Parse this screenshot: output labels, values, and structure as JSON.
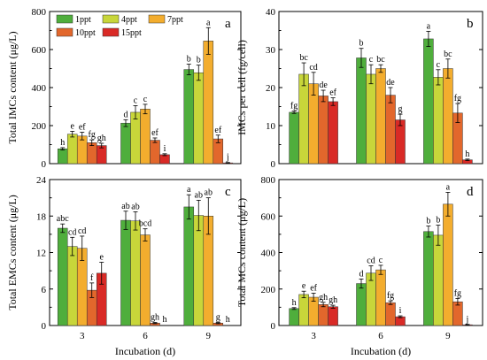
{
  "legend": {
    "placement": "top-center",
    "entries": [
      "1ppt",
      "4ppt",
      "7ppt",
      "10ppt",
      "15ppt"
    ]
  },
  "colors": {
    "1ppt": "#4fae3c",
    "4ppt": "#c8d63a",
    "7ppt": "#f3ad2e",
    "10ppt": "#e2672c",
    "15ppt": "#d92a26"
  },
  "chart_data": [
    {
      "panel": "a",
      "type": "bar",
      "categories": [
        "3",
        "6",
        "9"
      ],
      "ylabel": "Total IMCs content (μg/L)",
      "xlabel": "",
      "ylim": [
        0,
        800
      ],
      "yticks": [
        0,
        200,
        400,
        600,
        800
      ],
      "series": [
        {
          "name": "1ppt",
          "values": [
            78,
            213,
            495
          ],
          "errors": [
            6,
            18,
            28
          ],
          "labels": [
            "h",
            "d",
            "b"
          ]
        },
        {
          "name": "4ppt",
          "values": [
            155,
            270,
            478
          ],
          "errors": [
            15,
            35,
            40
          ],
          "labels": [
            "e",
            "c",
            "b"
          ]
        },
        {
          "name": "7ppt",
          "values": [
            145,
            287,
            645
          ],
          "errors": [
            20,
            25,
            70
          ],
          "labels": [
            "ef",
            "c",
            "a"
          ]
        },
        {
          "name": "10ppt",
          "values": [
            110,
            123,
            130
          ],
          "errors": [
            15,
            12,
            20
          ],
          "labels": [
            "fg",
            "ef",
            "ef"
          ]
        },
        {
          "name": "15ppt",
          "values": [
            95,
            47,
            4
          ],
          "errors": [
            12,
            5,
            2
          ],
          "labels": [
            "gh",
            "i",
            "j"
          ]
        }
      ]
    },
    {
      "panel": "b",
      "type": "bar",
      "categories": [
        "3",
        "6",
        "9"
      ],
      "ylabel": "IMCs per cell (fg/cell)",
      "xlabel": "",
      "ylim": [
        0,
        40
      ],
      "yticks": [
        0,
        10,
        20,
        30,
        40
      ],
      "series": [
        {
          "name": "1ppt",
          "values": [
            13.5,
            27.8,
            32.8
          ],
          "errors": [
            0.3,
            2.5,
            2
          ],
          "labels": [
            "fg",
            "b",
            "a"
          ]
        },
        {
          "name": "4ppt",
          "values": [
            23.5,
            23.5,
            22.7
          ],
          "errors": [
            3,
            2.5,
            2
          ],
          "labels": [
            "bc",
            "c",
            "c"
          ]
        },
        {
          "name": "7ppt",
          "values": [
            21,
            25,
            25
          ],
          "errors": [
            3,
            1,
            2.5
          ],
          "labels": [
            "cd",
            "bc",
            "bc"
          ]
        },
        {
          "name": "10ppt",
          "values": [
            17.8,
            18,
            13.3
          ],
          "errors": [
            1.5,
            2,
            2.5
          ],
          "labels": [
            "de",
            "de",
            "fg"
          ]
        },
        {
          "name": "15ppt",
          "values": [
            16.3,
            11.5,
            1
          ],
          "errors": [
            1,
            1.5,
            0.2
          ],
          "labels": [
            "ef",
            "g",
            "h"
          ]
        }
      ]
    },
    {
      "panel": "c",
      "type": "bar",
      "categories": [
        "3",
        "6",
        "9"
      ],
      "ylabel": "Total EMCs content (μg/L)",
      "xlabel": "Incubation (d)",
      "ylim": [
        0,
        24
      ],
      "yticks": [
        0,
        6,
        12,
        18,
        24
      ],
      "series": [
        {
          "name": "1ppt",
          "values": [
            16,
            17.3,
            19.5
          ],
          "errors": [
            0.7,
            1.5,
            2
          ],
          "labels": [
            "abc",
            "ab",
            "a"
          ]
        },
        {
          "name": "4ppt",
          "values": [
            13,
            17.2,
            18.1
          ],
          "errors": [
            1.5,
            1.5,
            2.5
          ],
          "labels": [
            "cd",
            "ab",
            "ab"
          ]
        },
        {
          "name": "7ppt",
          "values": [
            12.7,
            14.9,
            18
          ],
          "errors": [
            2,
            1,
            3
          ],
          "labels": [
            "cd",
            "bcd",
            "ab"
          ]
        },
        {
          "name": "10ppt",
          "values": [
            5.8,
            0.4,
            0.4
          ],
          "errors": [
            1.2,
            0.1,
            0.1
          ],
          "labels": [
            "f",
            "gh",
            "g"
          ]
        },
        {
          "name": "15ppt",
          "values": [
            8.6,
            0,
            0
          ],
          "errors": [
            1.8,
            0,
            0
          ],
          "labels": [
            "e",
            "h",
            "h"
          ]
        }
      ]
    },
    {
      "panel": "d",
      "type": "bar",
      "categories": [
        "3",
        "6",
        "9"
      ],
      "ylabel": "Total MCs content (μg/L)",
      "xlabel": "Incubation (d)",
      "ylim": [
        0,
        800
      ],
      "yticks": [
        0,
        200,
        400,
        600,
        800
      ],
      "series": [
        {
          "name": "1ppt",
          "values": [
            93,
            230,
            515
          ],
          "errors": [
            5,
            25,
            30
          ],
          "labels": [
            "h",
            "d",
            "b"
          ]
        },
        {
          "name": "4ppt",
          "values": [
            170,
            287,
            495
          ],
          "errors": [
            18,
            40,
            55
          ],
          "labels": [
            "e",
            "cd",
            "b"
          ]
        },
        {
          "name": "7ppt",
          "values": [
            155,
            305,
            665
          ],
          "errors": [
            22,
            25,
            65
          ],
          "labels": [
            "ef",
            "c",
            "a"
          ]
        },
        {
          "name": "10ppt",
          "values": [
            115,
            125,
            130
          ],
          "errors": [
            12,
            10,
            18
          ],
          "labels": [
            "gh",
            "fg",
            "fg"
          ]
        },
        {
          "name": "15ppt",
          "values": [
            103,
            48,
            4
          ],
          "errors": [
            8,
            5,
            2
          ],
          "labels": [
            "gh",
            "i",
            "j"
          ]
        }
      ]
    }
  ]
}
